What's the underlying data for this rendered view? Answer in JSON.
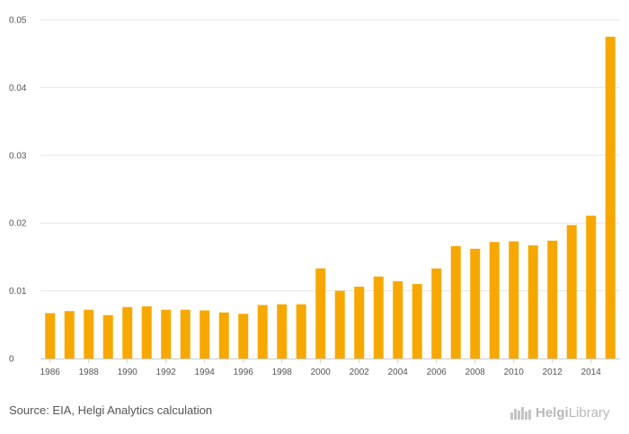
{
  "chart_data": {
    "type": "bar",
    "categories": [
      "1986",
      "1987",
      "1988",
      "1989",
      "1990",
      "1991",
      "1992",
      "1993",
      "1994",
      "1995",
      "1996",
      "1997",
      "1998",
      "1999",
      "2000",
      "2001",
      "2002",
      "2003",
      "2004",
      "2005",
      "2006",
      "2007",
      "2008",
      "2009",
      "2010",
      "2011",
      "2012",
      "2013",
      "2014",
      "2015"
    ],
    "values": [
      0.0067,
      0.007,
      0.0072,
      0.0064,
      0.0076,
      0.0077,
      0.0072,
      0.0072,
      0.0071,
      0.0068,
      0.0066,
      0.0079,
      0.008,
      0.008,
      0.0133,
      0.01,
      0.0106,
      0.0121,
      0.0114,
      0.011,
      0.0133,
      0.0166,
      0.0162,
      0.0172,
      0.0173,
      0.0167,
      0.0174,
      0.0197,
      0.0211,
      0.0475
    ],
    "x_tick_labels": [
      "1986",
      "1988",
      "1990",
      "1992",
      "1994",
      "1996",
      "1998",
      "2000",
      "2002",
      "2004",
      "2006",
      "2008",
      "2010",
      "2012",
      "2014"
    ],
    "y_ticks": [
      0,
      0.01,
      0.02,
      0.03,
      0.04,
      0.05
    ],
    "y_tick_labels": [
      "0",
      "0.01",
      "0.02",
      "0.03",
      "0.04",
      "0.05"
    ],
    "ylim": [
      0,
      0.05
    ],
    "title": "",
    "xlabel": "",
    "ylabel": "",
    "grid": true,
    "bar_color": "#f7a800"
  },
  "footer": {
    "source": "Source: EIA, Helgi Analytics calculation",
    "logo_brand": "Helgi",
    "logo_suffix": "Library"
  }
}
